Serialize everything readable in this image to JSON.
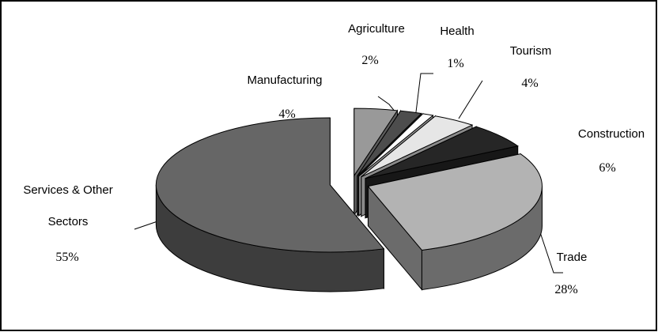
{
  "chart_data": {
    "type": "pie3d",
    "categories": [
      "Manufacturing",
      "Agriculture",
      "Health",
      "Tourism",
      "Construction",
      "Trade",
      "Services & Other Sectors"
    ],
    "values": [
      4,
      2,
      1,
      4,
      6,
      28,
      55
    ],
    "value_labels": [
      "4%",
      "2%",
      "1%",
      "4%",
      "6%",
      "28%",
      "55%"
    ],
    "colors": [
      "#999999",
      "#4d4d4d",
      "#ffffff",
      "#e6e6e6",
      "#262626",
      "#b3b3b3",
      "#666666"
    ]
  }
}
